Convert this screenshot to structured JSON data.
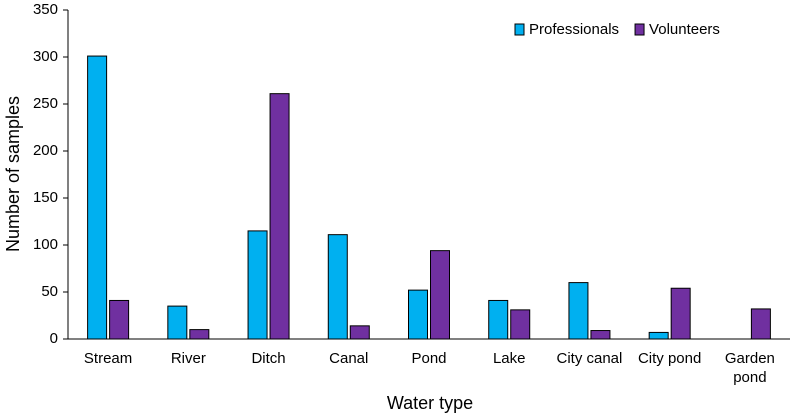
{
  "chart_data": {
    "type": "bar",
    "x_label": "Water type",
    "y_label": "Number of samples",
    "categories": [
      "Stream",
      "River",
      "Ditch",
      "Canal",
      "Pond",
      "Lake",
      "City canal",
      "City pond",
      "Garden pond"
    ],
    "series": [
      {
        "name": "Professionals",
        "color": "#00b0f0",
        "values": [
          301,
          35,
          115,
          111,
          52,
          41,
          60,
          7,
          0
        ]
      },
      {
        "name": "Volunteers",
        "color": "#7030a0",
        "values": [
          41,
          10,
          261,
          14,
          94,
          31,
          9,
          54,
          32
        ]
      }
    ],
    "ylim": [
      0,
      350
    ],
    "yticks": [
      0,
      50,
      100,
      150,
      200,
      250,
      300,
      350
    ],
    "grid": false,
    "legend": "top-right"
  }
}
